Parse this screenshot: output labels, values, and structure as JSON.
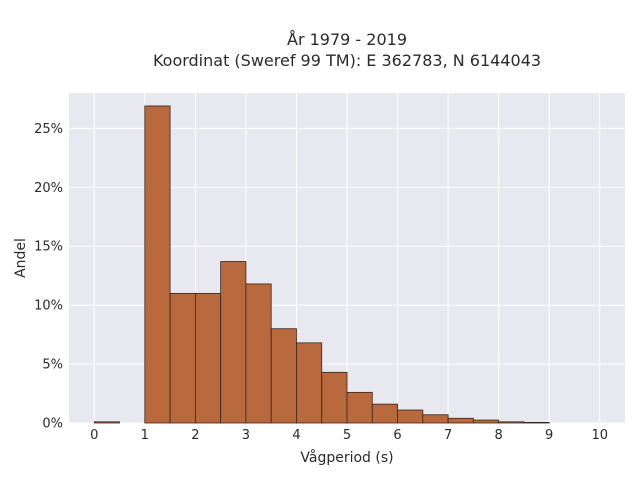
{
  "chart_data": {
    "type": "bar",
    "title_line1": "År 1979 - 2019",
    "title_line2": "Koordinat (Sweref 99 TM): E 362783, N 6144043",
    "xlabel": "Vågperiod (s)",
    "ylabel": "Andel",
    "xlim": [
      -0.5,
      10.5
    ],
    "ylim": [
      0,
      28
    ],
    "x_ticks": [
      "0",
      "1",
      "2",
      "3",
      "4",
      "5",
      "6",
      "7",
      "8",
      "9",
      "10"
    ],
    "y_ticks": [
      "0%",
      "5%",
      "10%",
      "15%",
      "20%",
      "25%"
    ],
    "bin_width": 0.5,
    "bins": [
      {
        "x0": 0.0,
        "value": 0.1
      },
      {
        "x0": 0.5,
        "value": 0.0
      },
      {
        "x0": 1.0,
        "value": 26.9
      },
      {
        "x0": 1.5,
        "value": 11.0
      },
      {
        "x0": 2.0,
        "value": 11.0
      },
      {
        "x0": 2.5,
        "value": 13.7
      },
      {
        "x0": 3.0,
        "value": 11.8
      },
      {
        "x0": 3.5,
        "value": 8.0
      },
      {
        "x0": 4.0,
        "value": 6.8
      },
      {
        "x0": 4.5,
        "value": 4.3
      },
      {
        "x0": 5.0,
        "value": 2.6
      },
      {
        "x0": 5.5,
        "value": 1.6
      },
      {
        "x0": 6.0,
        "value": 1.1
      },
      {
        "x0": 6.5,
        "value": 0.7
      },
      {
        "x0": 7.0,
        "value": 0.4
      },
      {
        "x0": 7.5,
        "value": 0.25
      },
      {
        "x0": 8.0,
        "value": 0.1
      },
      {
        "x0": 8.5,
        "value": 0.05
      }
    ],
    "grid": true,
    "colors": {
      "bar_fill": "#b86a3e",
      "bar_stroke": "#3a2418",
      "plot_bg": "#e8e8f0",
      "grid": "#ffffff"
    }
  }
}
